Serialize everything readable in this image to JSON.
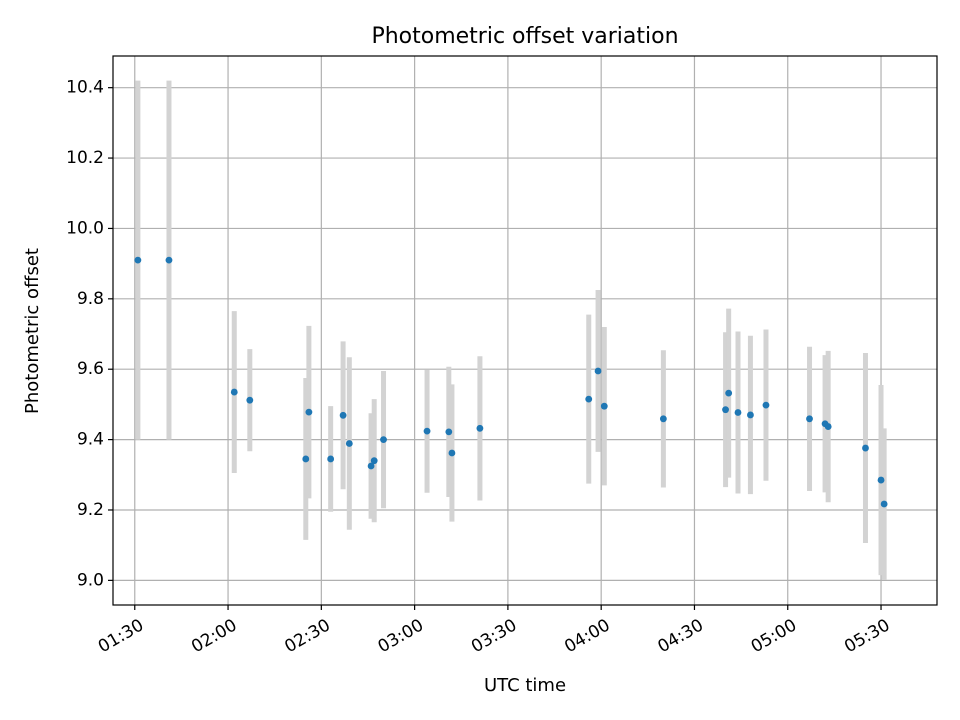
{
  "chart_data": {
    "type": "scatter",
    "title": "Photometric offset variation",
    "xlabel": "UTC time",
    "ylabel": "Photometric offset",
    "xlim": [
      "01:23",
      "05:48"
    ],
    "ylim": [
      8.93,
      10.49
    ],
    "x_ticks": [
      "01:30",
      "02:00",
      "02:30",
      "03:00",
      "03:30",
      "04:00",
      "04:30",
      "05:00",
      "05:30"
    ],
    "y_ticks": [
      "9.0",
      "9.2",
      "9.4",
      "9.6",
      "9.8",
      "10.0",
      "10.2",
      "10.4"
    ],
    "grid": true,
    "colors": {
      "point": "#1f77b4",
      "errorbar": "#d3d3d3",
      "grid": "#b0b0b0"
    },
    "points": [
      {
        "x": "01:31",
        "y": 9.91,
        "err": 0.51
      },
      {
        "x": "01:41",
        "y": 9.91,
        "err": 0.51
      },
      {
        "x": "02:02",
        "y": 9.535,
        "err": 0.23
      },
      {
        "x": "02:07",
        "y": 9.512,
        "err": 0.145
      },
      {
        "x": "02:25",
        "y": 9.345,
        "err": 0.23
      },
      {
        "x": "02:26",
        "y": 9.478,
        "err": 0.245
      },
      {
        "x": "02:33",
        "y": 9.345,
        "err": 0.15
      },
      {
        "x": "02:37",
        "y": 9.469,
        "err": 0.21
      },
      {
        "x": "02:39",
        "y": 9.389,
        "err": 0.245
      },
      {
        "x": "02:46",
        "y": 9.325,
        "err": 0.15
      },
      {
        "x": "02:47",
        "y": 9.34,
        "err": 0.175
      },
      {
        "x": "02:50",
        "y": 9.4,
        "err": 0.195
      },
      {
        "x": "03:04",
        "y": 9.424,
        "err": 0.175
      },
      {
        "x": "03:11",
        "y": 9.422,
        "err": 0.185
      },
      {
        "x": "03:12",
        "y": 9.362,
        "err": 0.195
      },
      {
        "x": "03:21",
        "y": 9.432,
        "err": 0.205
      },
      {
        "x": "03:56",
        "y": 9.515,
        "err": 0.24
      },
      {
        "x": "03:59",
        "y": 9.595,
        "err": 0.23
      },
      {
        "x": "04:01",
        "y": 9.495,
        "err": 0.225
      },
      {
        "x": "04:20",
        "y": 9.459,
        "err": 0.195
      },
      {
        "x": "04:40",
        "y": 9.485,
        "err": 0.22
      },
      {
        "x": "04:41",
        "y": 9.532,
        "err": 0.24
      },
      {
        "x": "04:44",
        "y": 9.477,
        "err": 0.23
      },
      {
        "x": "04:48",
        "y": 9.47,
        "err": 0.225
      },
      {
        "x": "04:53",
        "y": 9.498,
        "err": 0.215
      },
      {
        "x": "05:07",
        "y": 9.459,
        "err": 0.205
      },
      {
        "x": "05:12",
        "y": 9.445,
        "err": 0.195
      },
      {
        "x": "05:13",
        "y": 9.437,
        "err": 0.215
      },
      {
        "x": "05:25",
        "y": 9.376,
        "err": 0.27
      },
      {
        "x": "05:30",
        "y": 9.285,
        "err": 0.27
      },
      {
        "x": "05:31",
        "y": 9.217,
        "err": 0.215
      }
    ]
  }
}
